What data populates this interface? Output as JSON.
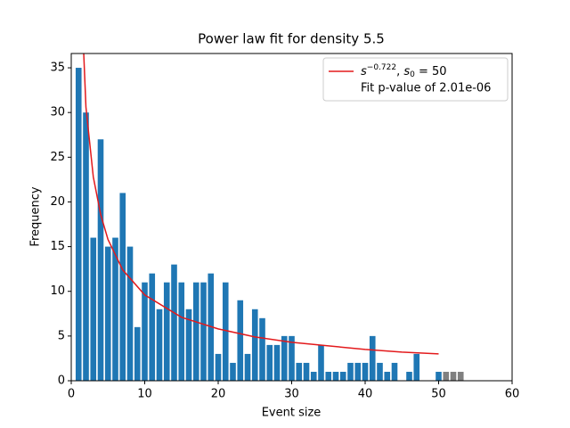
{
  "chart_data": {
    "type": "bar",
    "title": "Power law fit for density 5.5",
    "x_label": "Event size",
    "y_label": "Frequency",
    "xlim": [
      0,
      60
    ],
    "xticks": [
      0,
      10,
      20,
      30,
      40,
      50,
      60
    ],
    "ylim": [
      0,
      36.6
    ],
    "yticks": [
      0,
      5,
      10,
      15,
      20,
      25,
      30,
      35
    ],
    "bar_width": 0.8,
    "series": [
      {
        "type": "bar",
        "color": "#1f77b4",
        "x": [
          1,
          2,
          3,
          4,
          5,
          6,
          7,
          8,
          9,
          10,
          11,
          12,
          13,
          14,
          15,
          16,
          17,
          18,
          19,
          20,
          21,
          22,
          23,
          24,
          25,
          26,
          27,
          28,
          29,
          30,
          31,
          32,
          33,
          34,
          35,
          36,
          37,
          38,
          39,
          40,
          41,
          42,
          43,
          44,
          45,
          46,
          47,
          48,
          49,
          50
        ],
        "values": [
          35,
          30,
          16,
          27,
          15,
          16,
          21,
          15,
          6,
          11,
          12,
          8,
          11,
          13,
          11,
          8,
          11,
          11,
          12,
          3,
          11,
          2,
          9,
          3,
          8,
          7,
          4,
          4,
          5,
          5,
          2,
          2,
          1,
          4,
          1,
          1,
          1,
          2,
          2,
          2,
          5,
          2,
          1,
          2,
          0,
          1,
          3,
          0,
          0,
          1
        ]
      },
      {
        "type": "bar",
        "color": "#808080",
        "x": [
          51,
          52,
          53
        ],
        "values": [
          1,
          1,
          1
        ]
      },
      {
        "type": "line",
        "color": "#e31a1c",
        "name_parts": [
          "s",
          "−0.722",
          ", ",
          "s",
          "0",
          " = 50"
        ],
        "x": [
          1,
          2,
          3,
          4,
          5,
          7,
          10,
          15,
          20,
          25,
          30,
          35,
          40,
          45,
          50
        ],
        "values": [
          50.5,
          30.6,
          22.8,
          18.6,
          15.8,
          12.4,
          9.6,
          7.1,
          5.8,
          4.9,
          4.3,
          3.9,
          3.5,
          3.2,
          3.0
        ]
      }
    ],
    "legend_note": "Fit p-value of 2.01e-06",
    "legend_position": "upper right"
  }
}
